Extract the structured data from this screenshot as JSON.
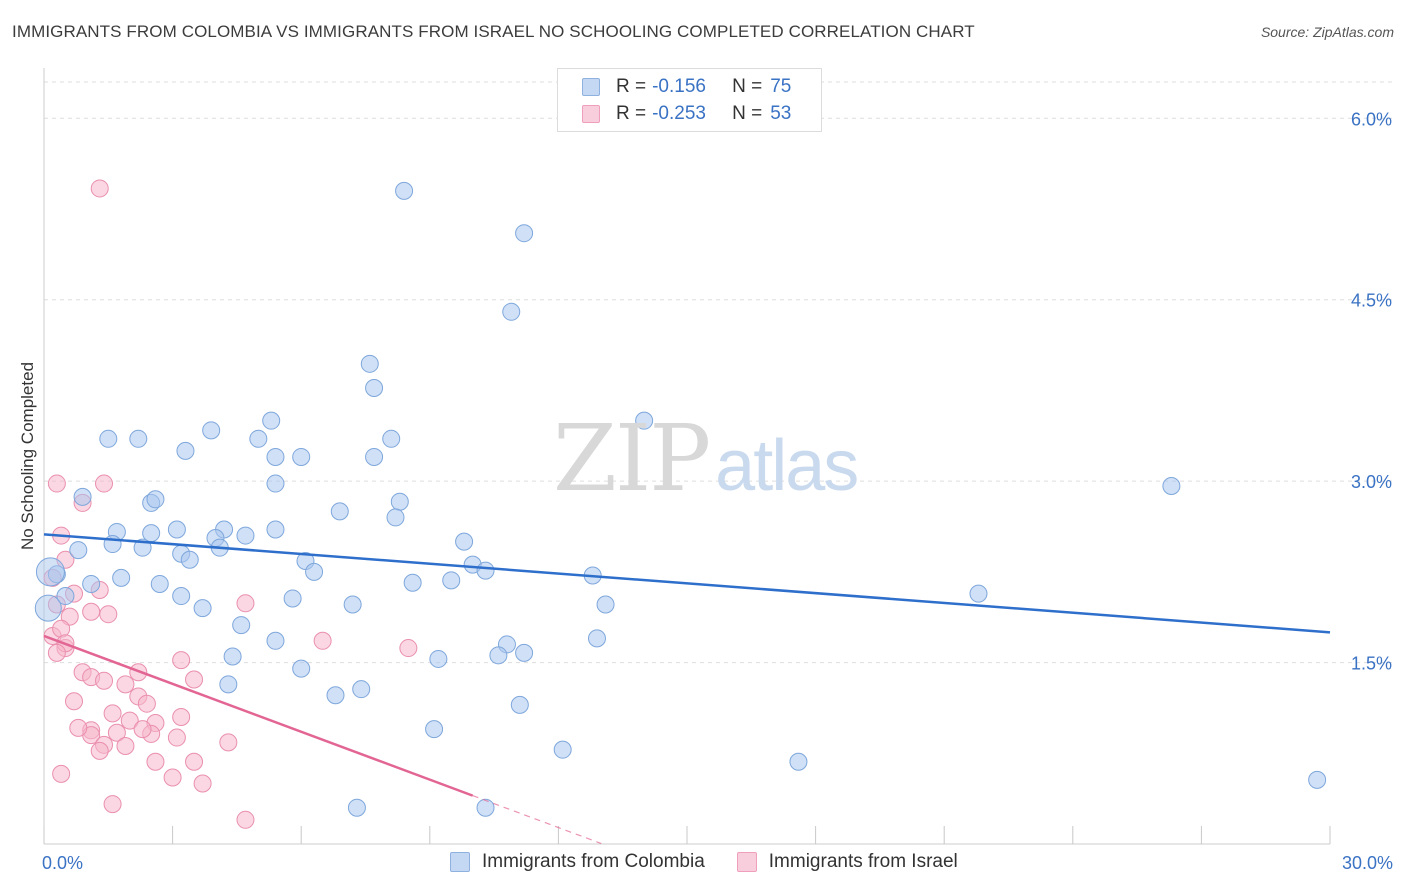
{
  "header": {
    "title": "IMMIGRANTS FROM COLOMBIA VS IMMIGRANTS FROM ISRAEL NO SCHOOLING COMPLETED CORRELATION CHART",
    "source": "Source: ZipAtlas.com"
  },
  "watermark": {
    "zip": "ZIP",
    "atlas": "atlas"
  },
  "legend": {
    "rows": [
      {
        "r_label": "R =",
        "r_value": "-0.156",
        "n_label": "N =",
        "n_value": "75",
        "color": "#a9c6ee"
      },
      {
        "r_label": "R =",
        "r_value": "-0.253",
        "n_label": "N =",
        "n_value": "53",
        "color": "#f6b6cb"
      }
    ]
  },
  "bottom_legend": {
    "colombia": "Immigrants from Colombia",
    "israel": "Immigrants from Israel"
  },
  "colors": {
    "colombia_fill": "#a9c6ee",
    "colombia_stroke": "#7ea7dc",
    "colombia_line": "#2f6fcc",
    "israel_fill": "#f6b6cb",
    "israel_stroke": "#ea8fae",
    "israel_line": "#e26593",
    "axis_text": "#3a72c4",
    "grid": "#dddddd"
  },
  "chart_data": {
    "type": "scatter",
    "title": "IMMIGRANTS FROM COLOMBIA VS IMMIGRANTS FROM ISRAEL NO SCHOOLING COMPLETED CORRELATION CHART",
    "xlabel": "",
    "ylabel": "No Schooling Completed",
    "xlim": [
      0,
      30
    ],
    "ylim": [
      0,
      6.3
    ],
    "x_tick_labels": [
      "0.0%",
      "30.0%"
    ],
    "y_ticks": [
      1.5,
      3.0,
      4.5,
      6.0
    ],
    "y_tick_labels": [
      "1.5%",
      "3.0%",
      "4.5%",
      "6.0%"
    ],
    "grid": true,
    "legend_position": "top-center",
    "series": [
      {
        "name": "Immigrants from Colombia",
        "x": [
          8.4,
          11.2,
          10.9,
          7.6,
          7.7,
          3.9,
          1.5,
          2.2,
          3.3,
          5.0,
          5.3,
          5.4,
          5.4,
          6.0,
          8.1,
          7.7,
          8.3,
          14.0,
          26.3,
          0.9,
          2.5,
          2.3,
          2.6,
          3.1,
          4.2,
          4.0,
          5.4,
          6.9,
          8.2,
          0.8,
          1.7,
          1.6,
          2.5,
          3.2,
          3.4,
          4.1,
          4.7,
          6.1,
          9.8,
          10.0,
          10.3,
          12.8,
          21.8,
          0.3,
          0.5,
          1.1,
          1.8,
          2.7,
          3.2,
          3.7,
          4.6,
          5.8,
          6.3,
          7.2,
          9.5,
          10.8,
          12.9,
          13.1,
          11.1,
          11.2,
          5.4,
          4.4,
          6.0,
          4.3,
          8.6,
          7.4,
          6.8,
          9.2,
          9.1,
          12.1,
          17.6,
          10.3,
          7.3,
          10.6,
          29.7
        ],
        "y": [
          5.4,
          5.05,
          4.4,
          3.97,
          3.77,
          3.42,
          3.35,
          3.35,
          3.25,
          3.35,
          3.5,
          3.2,
          2.98,
          3.2,
          3.35,
          3.2,
          2.83,
          3.5,
          2.96,
          2.87,
          2.82,
          2.45,
          2.85,
          2.6,
          2.6,
          2.53,
          2.6,
          2.75,
          2.7,
          2.43,
          2.58,
          2.48,
          2.57,
          2.4,
          2.35,
          2.45,
          2.55,
          2.34,
          2.5,
          2.31,
          2.26,
          2.22,
          2.07,
          2.23,
          2.05,
          2.15,
          2.2,
          2.15,
          2.05,
          1.95,
          1.81,
          2.03,
          2.25,
          1.98,
          2.18,
          1.65,
          1.7,
          1.98,
          1.15,
          1.58,
          1.68,
          1.55,
          1.45,
          1.32,
          2.16,
          1.28,
          1.23,
          1.53,
          0.95,
          0.78,
          0.68,
          0.3,
          0.3,
          1.56,
          0.53
        ]
      },
      {
        "name": "Immigrants from Israel",
        "x": [
          1.3,
          0.3,
          1.4,
          0.9,
          0.4,
          0.5,
          0.2,
          1.3,
          0.7,
          1.1,
          1.5,
          0.6,
          0.2,
          0.5,
          0.4,
          0.5,
          0.3,
          0.9,
          1.1,
          2.2,
          1.4,
          1.9,
          2.2,
          3.2,
          3.5,
          4.7,
          6.5,
          8.5,
          4.3,
          3.5,
          2.4,
          1.6,
          2.0,
          1.1,
          2.6,
          3.1,
          2.5,
          3.2,
          4.7,
          2.3,
          3.7,
          1.1,
          1.7,
          1.9,
          0.8,
          1.4,
          2.6,
          1.6,
          3.0,
          0.7,
          1.3,
          0.4,
          0.3
        ],
        "y": [
          5.42,
          2.98,
          2.98,
          2.82,
          2.55,
          2.35,
          2.2,
          2.1,
          2.07,
          1.92,
          1.9,
          1.88,
          1.72,
          1.62,
          1.78,
          1.66,
          1.58,
          1.42,
          1.38,
          1.42,
          1.35,
          1.32,
          1.22,
          1.52,
          1.36,
          1.99,
          1.68,
          1.62,
          0.84,
          0.68,
          1.16,
          1.08,
          1.02,
          0.94,
          1.0,
          0.88,
          0.91,
          1.05,
          0.2,
          0.95,
          0.5,
          0.9,
          0.92,
          0.81,
          0.96,
          0.82,
          0.68,
          0.33,
          0.55,
          1.18,
          0.77,
          0.58,
          1.98
        ]
      }
    ],
    "trend_lines": [
      {
        "name": "Immigrants from Colombia",
        "x": [
          0,
          30
        ],
        "y": [
          2.56,
          1.75
        ]
      },
      {
        "name": "Immigrants from Israel",
        "x": [
          0,
          10
        ],
        "y": [
          1.72,
          0.4
        ],
        "dashed_extension_x": [
          10,
          13
        ]
      }
    ]
  }
}
